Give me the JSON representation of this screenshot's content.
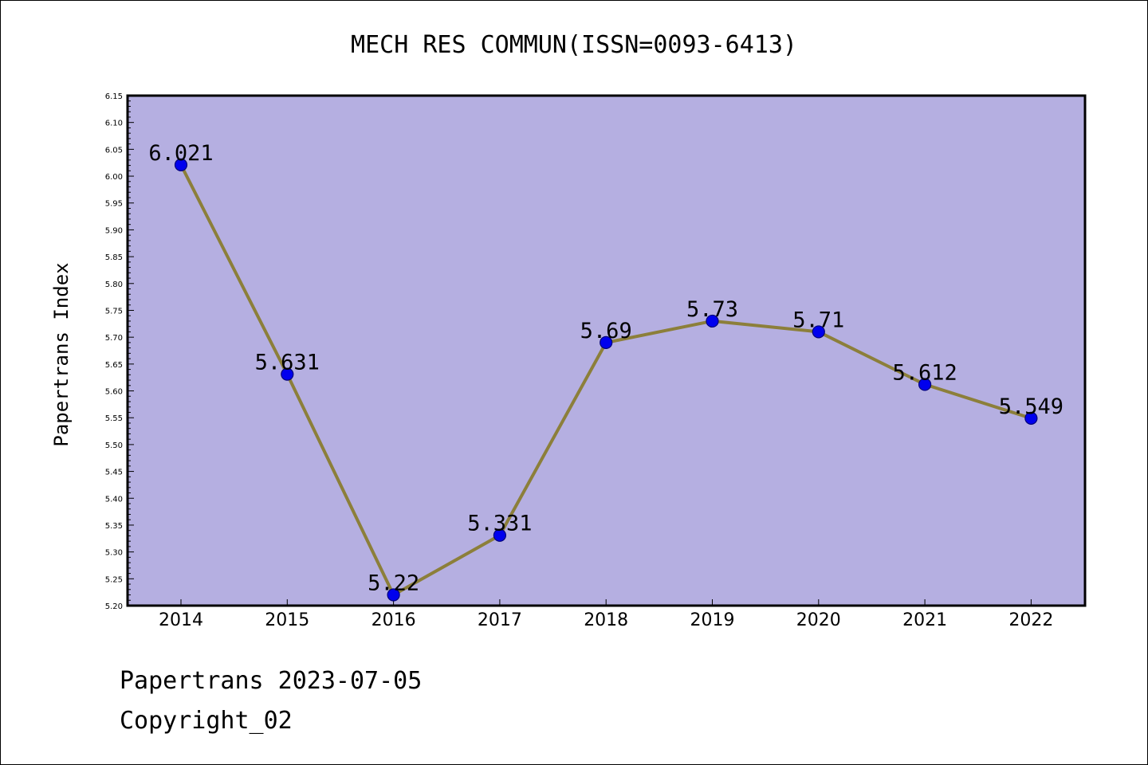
{
  "chart_data": {
    "type": "line",
    "title": "MECH RES COMMUN(ISSN=0093-6413)",
    "xlabel": "",
    "ylabel": "Papertrans Index",
    "categories": [
      "2014",
      "2015",
      "2016",
      "2017",
      "2018",
      "2019",
      "2020",
      "2021",
      "2022"
    ],
    "values": [
      6.021,
      5.631,
      5.22,
      5.331,
      5.69,
      5.73,
      5.71,
      5.612,
      5.549
    ],
    "data_labels": [
      "6.021",
      "5.631",
      "5.22",
      "5.331",
      "5.69",
      "5.73",
      "5.71",
      "5.612",
      "5.549"
    ],
    "ylim": [
      5.2,
      6.15
    ],
    "yticks": [
      "5.20",
      "5.25",
      "5.30",
      "5.35",
      "5.40",
      "5.45",
      "5.50",
      "5.55",
      "5.60",
      "5.65",
      "5.70",
      "5.75",
      "5.80",
      "5.85",
      "5.90",
      "5.95",
      "6.00",
      "6.05",
      "6.10",
      "6.15"
    ],
    "grid": false,
    "legend": "none",
    "colors": {
      "plot_background": "#b5afe1",
      "line": "#8c7f3a",
      "marker": "#0000ee",
      "marker_edge": "#00007a"
    }
  },
  "footer": {
    "line1": "Papertrans 2023-07-05",
    "line2": "Copyright_02"
  }
}
